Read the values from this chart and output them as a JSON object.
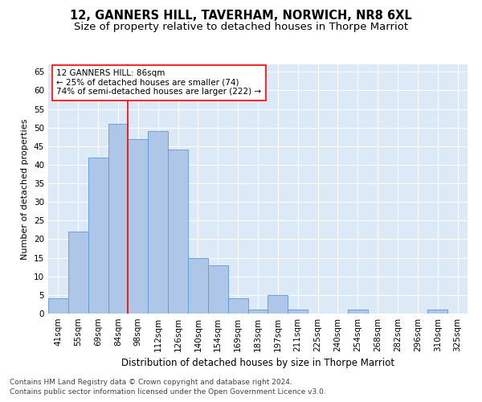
{
  "title": "12, GANNERS HILL, TAVERHAM, NORWICH, NR8 6XL",
  "subtitle": "Size of property relative to detached houses in Thorpe Marriot",
  "xlabel": "Distribution of detached houses by size in Thorpe Marriot",
  "ylabel": "Number of detached properties",
  "categories": [
    "41sqm",
    "55sqm",
    "69sqm",
    "84sqm",
    "98sqm",
    "112sqm",
    "126sqm",
    "140sqm",
    "154sqm",
    "169sqm",
    "183sqm",
    "197sqm",
    "211sqm",
    "225sqm",
    "240sqm",
    "254sqm",
    "268sqm",
    "282sqm",
    "296sqm",
    "310sqm",
    "325sqm"
  ],
  "values": [
    4,
    22,
    42,
    51,
    47,
    49,
    44,
    15,
    13,
    4,
    1,
    5,
    1,
    0,
    0,
    1,
    0,
    0,
    0,
    1,
    0
  ],
  "bar_color": "#aec6e8",
  "bar_edge_color": "#5b9bd5",
  "background_color": "#dce9f7",
  "annotation_text": "12 GANNERS HILL: 86sqm\n← 25% of detached houses are smaller (74)\n74% of semi-detached houses are larger (222) →",
  "vline_x_index": 3.5,
  "vline_color": "red",
  "annotation_box_color": "white",
  "annotation_box_edge_color": "red",
  "ylim": [
    0,
    67
  ],
  "yticks": [
    0,
    5,
    10,
    15,
    20,
    25,
    30,
    35,
    40,
    45,
    50,
    55,
    60,
    65
  ],
  "footnote1": "Contains HM Land Registry data © Crown copyright and database right 2024.",
  "footnote2": "Contains public sector information licensed under the Open Government Licence v3.0.",
  "title_fontsize": 10.5,
  "subtitle_fontsize": 9.5,
  "xlabel_fontsize": 8.5,
  "ylabel_fontsize": 8,
  "tick_fontsize": 7.5,
  "annotation_fontsize": 7.5,
  "footnote_fontsize": 6.5
}
